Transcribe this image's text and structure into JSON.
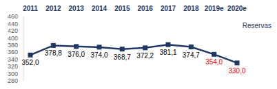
{
  "chart_data": {
    "type": "line",
    "categories": [
      "2011",
      "2012",
      "2013",
      "2014",
      "2015",
      "2016",
      "2017",
      "2018",
      "2019e",
      "2020e"
    ],
    "values": [
      352.0,
      378.8,
      376.0,
      374.0,
      368.7,
      372.2,
      381.1,
      374.7,
      354.0,
      330.0
    ],
    "value_labels": [
      "352,0",
      "378,8",
      "376,0",
      "374,0",
      "368,7",
      "372,2",
      "381,1",
      "374,7",
      "354,0",
      "330,0"
    ],
    "color": "#1f3864",
    "colors": [
      "#000000",
      "#000000",
      "#000000",
      "#000000",
      "#000000",
      "#000000",
      "#000000",
      "#000000",
      "#ff0000",
      "#ff0000"
    ],
    "marker": "square",
    "line_style": "solid",
    "data_labels": true,
    "grid": false,
    "ylim": [
      280,
      460
    ],
    "yticks": [
      280,
      300,
      320,
      340,
      360,
      380,
      400,
      420,
      440,
      460
    ],
    "annotation": "Reservas"
  }
}
